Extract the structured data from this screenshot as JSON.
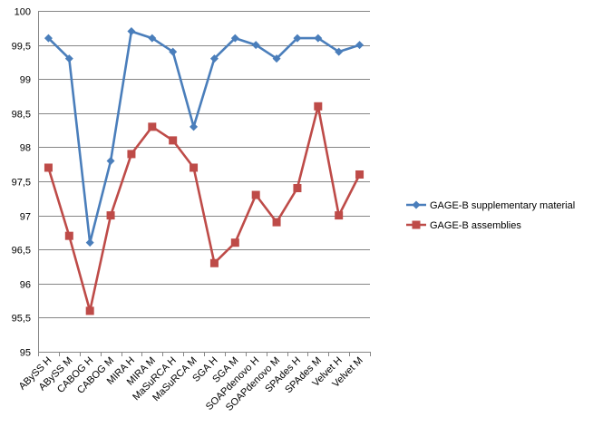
{
  "chart_data": {
    "type": "line",
    "title": "",
    "xlabel": "",
    "ylabel": "",
    "ylim": [
      95,
      100
    ],
    "ytick_step": 0.5,
    "yticks": [
      "95",
      "95,5",
      "96",
      "96,5",
      "97",
      "97,5",
      "98",
      "98,5",
      "99",
      "99,5",
      "100"
    ],
    "grid": "horizontal",
    "legend_position": "right",
    "categories": [
      "ABySS H",
      "ABySS M",
      "CABOG H",
      "CABOG M",
      "MIRA H",
      "MIRA M",
      "MaSuRCA H",
      "MaSuRCA M",
      "SGA H",
      "SGA M",
      "SOAPdenovo H",
      "SOAPdenovo M",
      "SPAdes H",
      "SPAdes M",
      "Velvet H",
      "Velvet M"
    ],
    "series": [
      {
        "name": "GAGE-B supplementary material",
        "color": "#4a7ebb",
        "marker": "diamond",
        "values": [
          99.6,
          99.3,
          96.6,
          97.8,
          99.7,
          99.6,
          99.4,
          98.3,
          99.3,
          99.6,
          99.5,
          99.3,
          99.6,
          99.6,
          99.4,
          99.5
        ]
      },
      {
        "name": "GAGE-B assemblies",
        "color": "#be4b48",
        "marker": "square",
        "values": [
          97.7,
          96.7,
          95.6,
          97.0,
          97.9,
          98.3,
          98.1,
          97.7,
          96.3,
          96.6,
          97.3,
          96.9,
          97.4,
          98.6,
          97.0,
          97.6
        ]
      }
    ]
  }
}
